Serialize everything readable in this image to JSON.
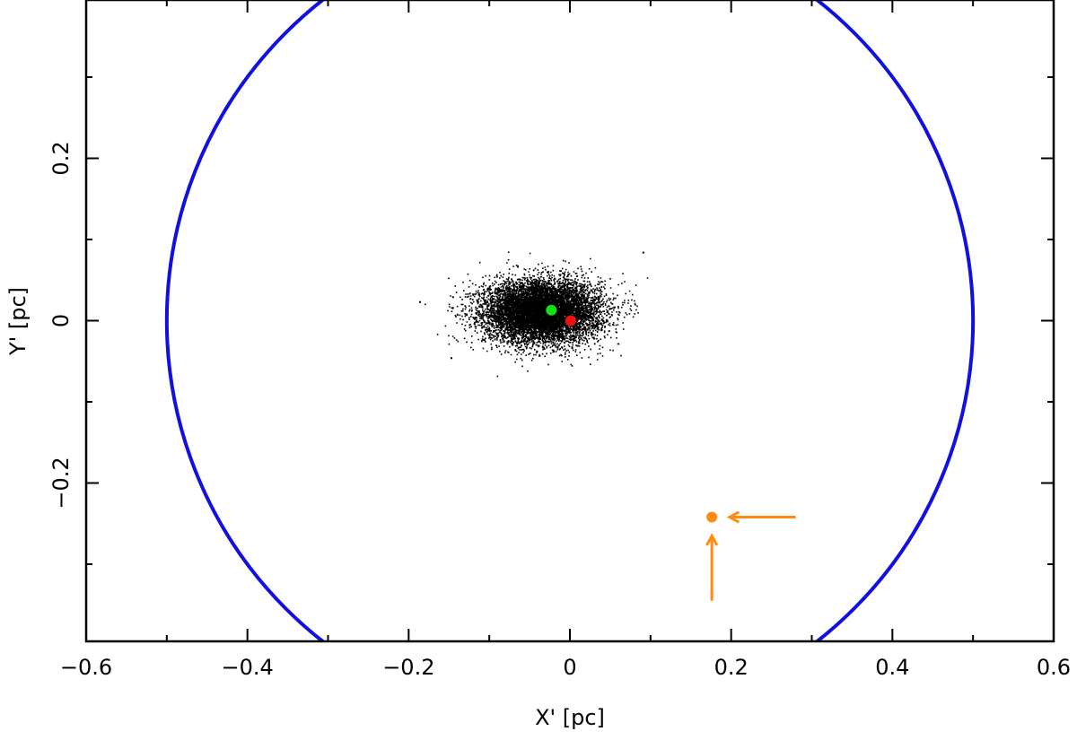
{
  "chart_data": {
    "type": "scatter",
    "xlabel": "X' [pc]",
    "ylabel": "Y' [pc]",
    "xlim": [
      -0.6,
      0.6
    ],
    "ylim": [
      -0.395,
      0.395
    ],
    "xticks": [
      "−0.6",
      "−0.4",
      "−0.2",
      "0",
      "0.2",
      "0.4",
      "0.6"
    ],
    "xtick_values": [
      -0.6,
      -0.4,
      -0.2,
      0,
      0.2,
      0.4,
      0.6
    ],
    "yticks": [
      "−0.2",
      "0",
      "0.2"
    ],
    "ytick_values": [
      -0.2,
      0,
      0.2
    ],
    "minor_x_step": 0.1,
    "minor_y_step": 0.1,
    "grid": false,
    "colors": {
      "axes": "#000000",
      "points": "#000000",
      "circle": "#1010e0",
      "green_marker": "#10e010",
      "red_marker": "#f01010",
      "orange_marker": "#ff8c10"
    },
    "cloud": {
      "center": [
        -0.035,
        0.012
      ],
      "sigma": [
        0.036,
        0.019
      ],
      "count": 9000,
      "extra_points": [
        [
          -0.187,
          0.024
        ],
        [
          -0.148,
          -0.045
        ],
        [
          -0.146,
          0.03
        ],
        [
          0.09,
          0.085
        ]
      ]
    },
    "circle": {
      "center": [
        0,
        0
      ],
      "radius": 0.5
    },
    "markers": [
      {
        "name": "green-marker",
        "x": -0.023,
        "y": 0.013,
        "color": "#10e010"
      },
      {
        "name": "red-marker",
        "x": 0.001,
        "y": 0.0,
        "color": "#f01010"
      },
      {
        "name": "orange-marker",
        "x": 0.176,
        "y": -0.242,
        "color": "#ff8c10"
      }
    ],
    "arrows": [
      {
        "name": "orange-arrow-horizontal",
        "from": [
          0.28,
          -0.242
        ],
        "to": [
          0.198,
          -0.242
        ],
        "color": "#ff8c10"
      },
      {
        "name": "orange-arrow-vertical",
        "from": [
          0.176,
          -0.345
        ],
        "to": [
          0.176,
          -0.265
        ],
        "color": "#ff8c10"
      }
    ]
  }
}
